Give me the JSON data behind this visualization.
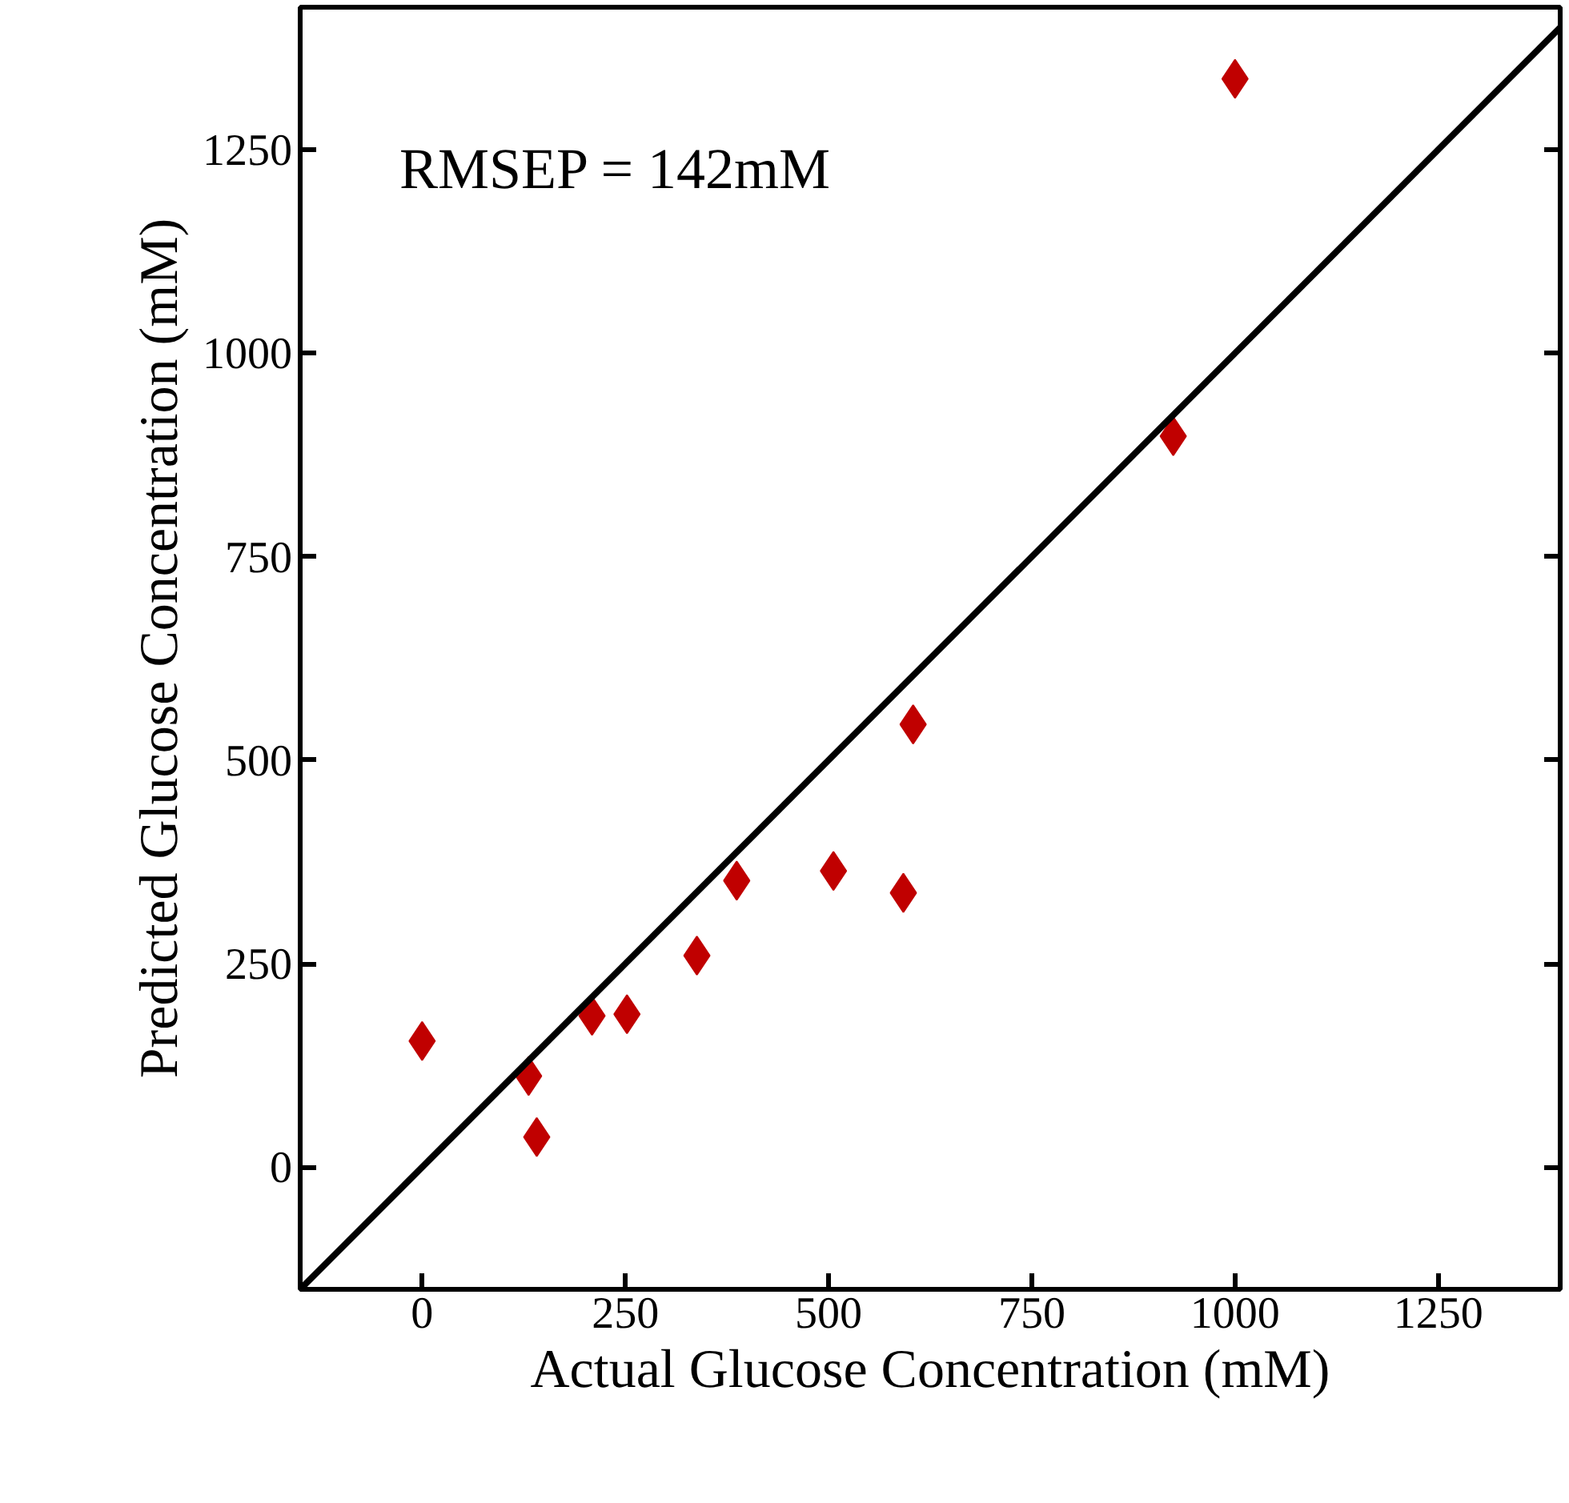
{
  "chart_data": {
    "type": "scatter",
    "xlabel": "Actual Glucose Concentration (mM)",
    "ylabel": "Predicted Glucose Concentration (mM)",
    "annotations": [
      "RMSEP = 142mM"
    ],
    "x": [
      0,
      131,
      141,
      209,
      252,
      338,
      387,
      506,
      592,
      604,
      924,
      1000
    ],
    "series": [
      {
        "color": "#c00000",
        "marker": "diamond",
        "values": [
          155,
          112,
          37,
          186,
          188,
          260,
          352,
          364,
          337,
          544,
          898,
          1337
        ]
      },
      {
        "type": "line",
        "color": "#000000",
        "line_style": "solid",
        "x": [
          -150,
          1400
        ],
        "values": [
          -150,
          1400
        ]
      }
    ],
    "xlim": [
      -150,
      1400
    ],
    "ylim": [
      -150,
      1425
    ],
    "xticks": [
      0,
      250,
      500,
      750,
      1000,
      1250
    ],
    "yticks": [
      0,
      250,
      500,
      750,
      1000,
      1250
    ],
    "grid": false
  }
}
